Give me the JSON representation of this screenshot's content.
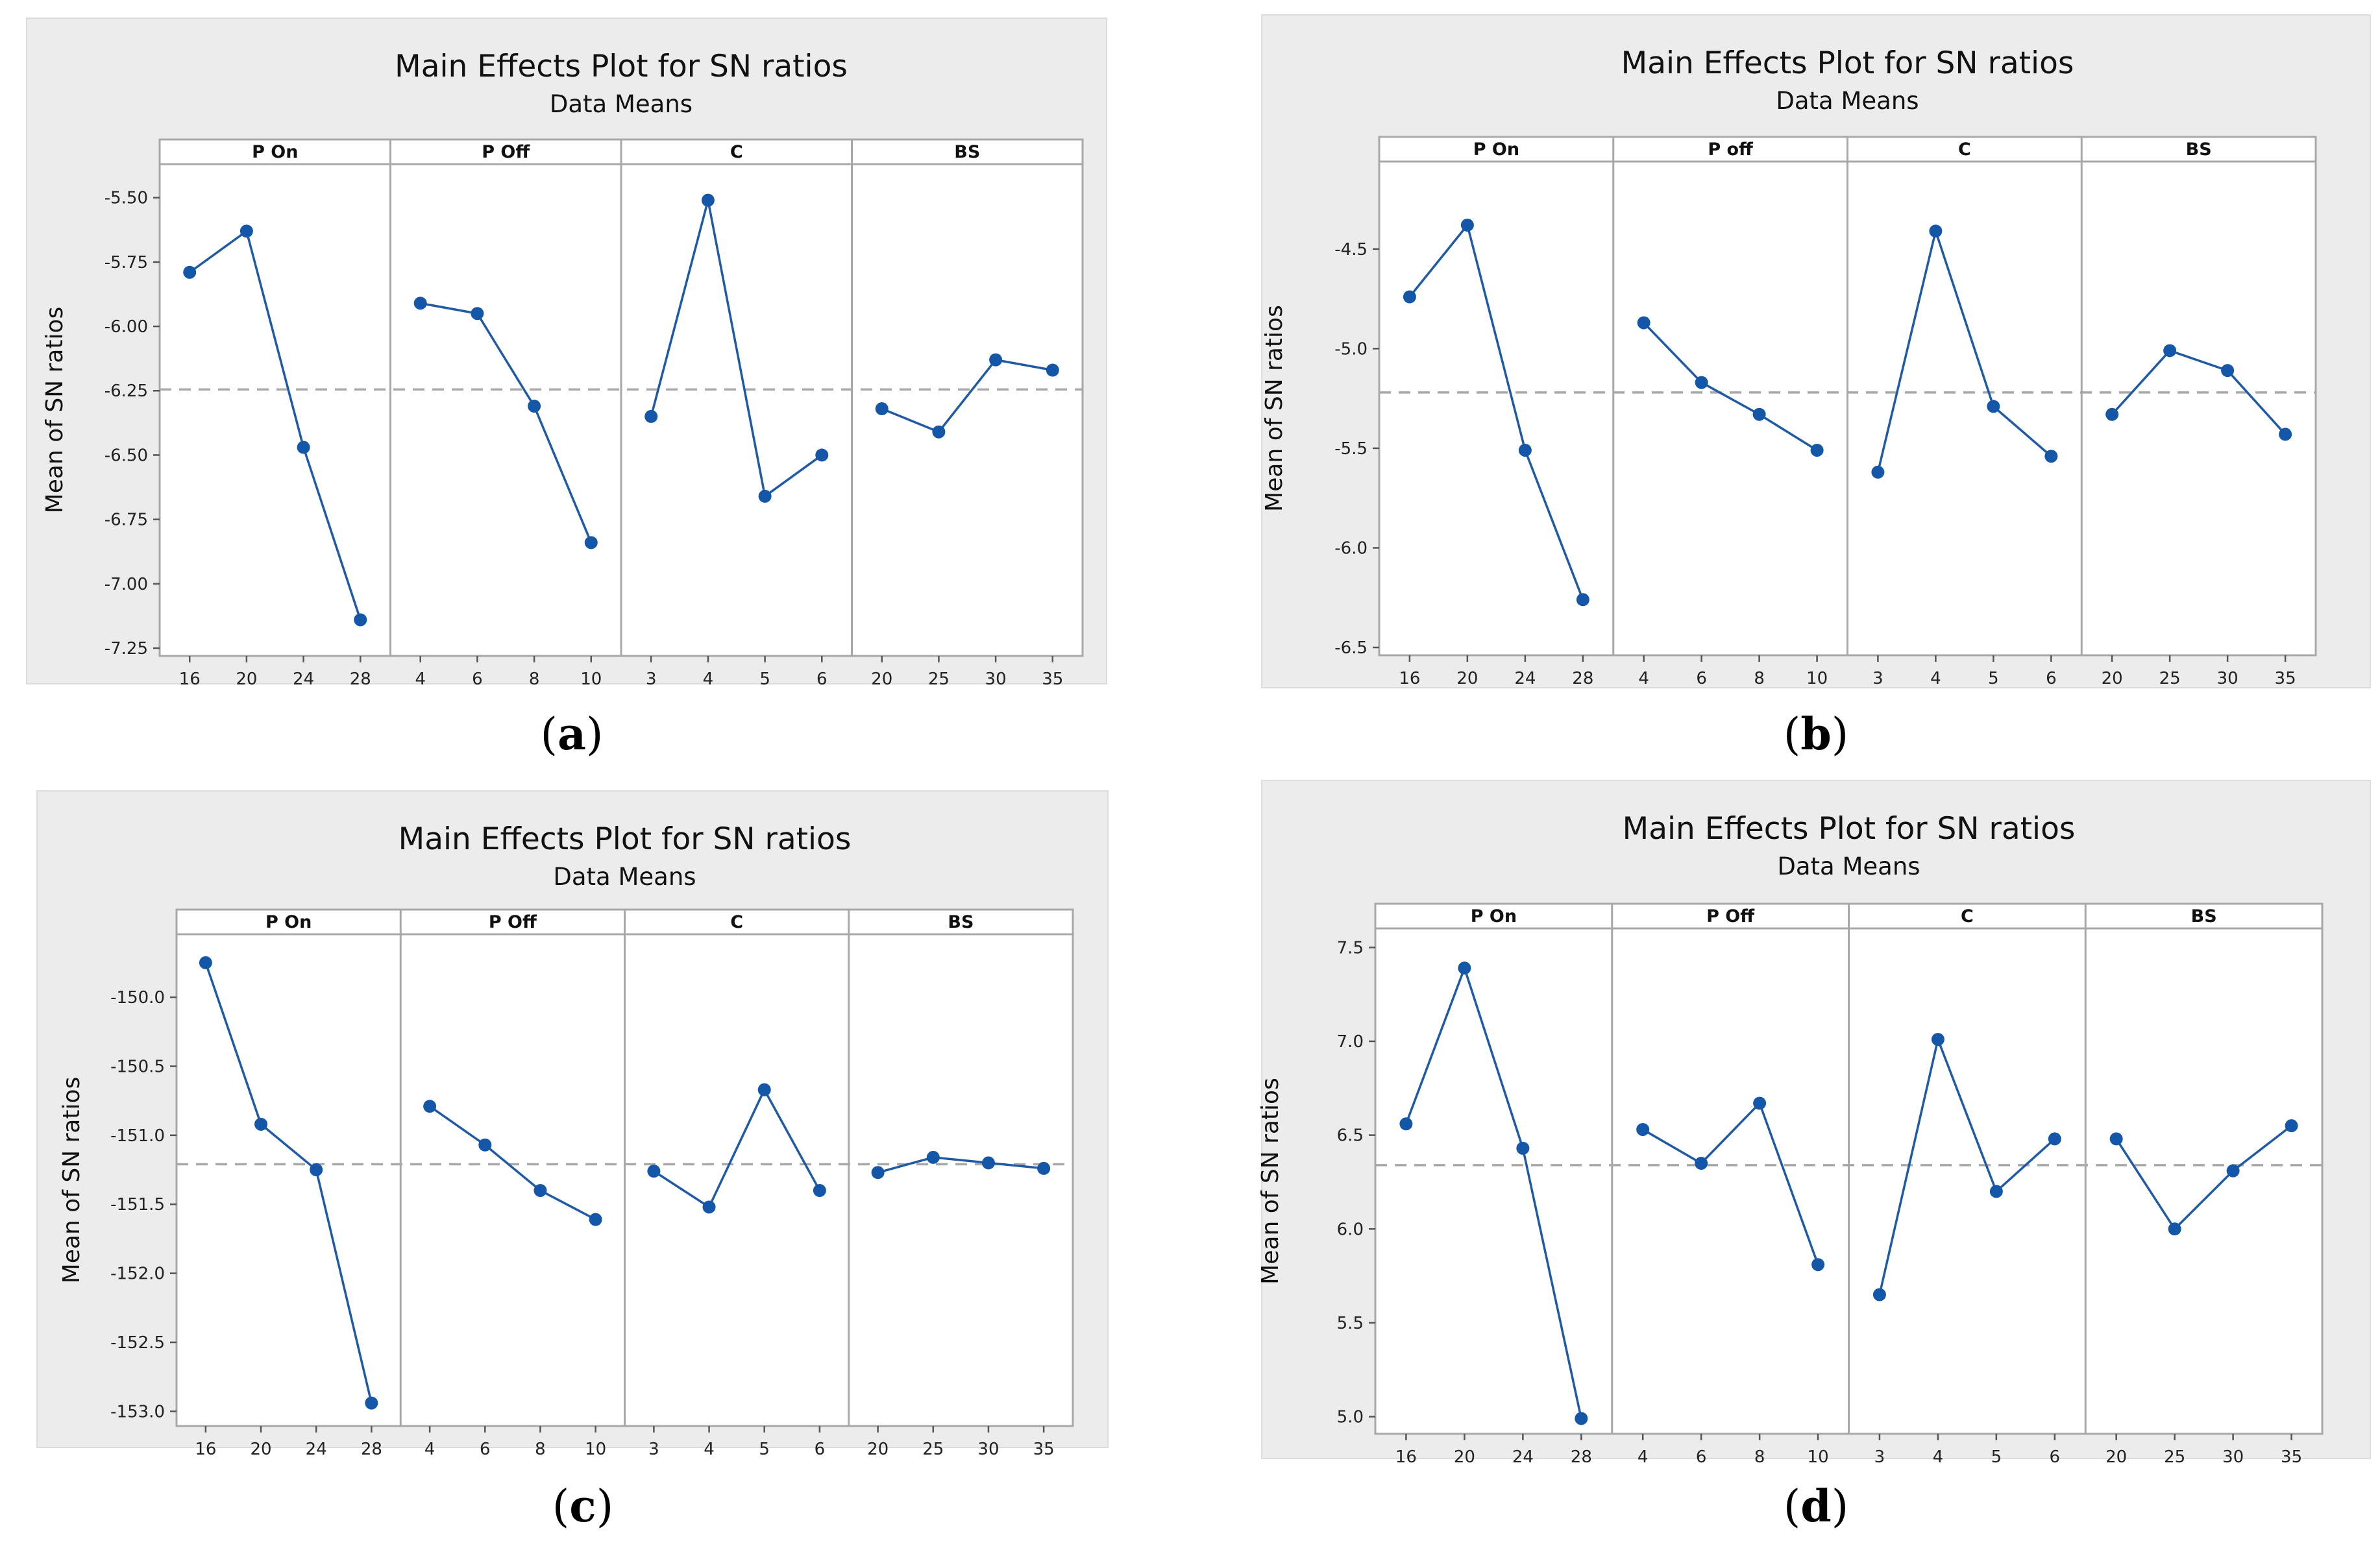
{
  "figure": {
    "panels": [
      {
        "caption_letter": "a",
        "title": "Main Effects Plot for SN ratios",
        "subtitle": "Data Means",
        "ylabel": "Mean of SN ratios",
        "chart_data": {
          "type": "line",
          "title": "Main Effects Plot for SN ratios",
          "subtitle": "Data Means",
          "ylabel": "Mean of SN ratios",
          "ylim": [
            -7.25,
            -5.4
          ],
          "yticks": [
            "-5.50",
            "-5.75",
            "-6.00",
            "-6.25",
            "-6.50",
            "-6.75",
            "-7.00",
            "-7.25"
          ],
          "reference_mean": -6.245,
          "factors": [
            {
              "name": "P On",
              "levels": [
                "16",
                "20",
                "24",
                "28"
              ],
              "values": [
                -5.79,
                -5.63,
                -6.47,
                -7.14
              ]
            },
            {
              "name": "P Off",
              "levels": [
                "4",
                "6",
                "8",
                "10"
              ],
              "values": [
                -5.91,
                -5.95,
                -6.31,
                -6.84
              ]
            },
            {
              "name": "C",
              "levels": [
                "3",
                "4",
                "5",
                "6"
              ],
              "values": [
                -6.35,
                -5.51,
                -6.66,
                -6.5
              ]
            },
            {
              "name": "BS",
              "levels": [
                "20",
                "25",
                "30",
                "35"
              ],
              "values": [
                -6.32,
                -6.41,
                -6.13,
                -6.17
              ]
            }
          ]
        }
      },
      {
        "caption_letter": "b",
        "title": "Main Effects Plot for SN ratios",
        "subtitle": "Data Means",
        "ylabel": "Mean of SN ratios",
        "chart_data": {
          "type": "line",
          "title": "Main Effects Plot for SN ratios",
          "subtitle": "Data Means",
          "ylabel": "Mean of SN ratios",
          "ylim": [
            -6.5,
            -4.1
          ],
          "yticks": [
            "-4.5",
            "-5.0",
            "-5.5",
            "-6.0",
            "-6.5"
          ],
          "reference_mean": -5.22,
          "factors": [
            {
              "name": "P On",
              "levels": [
                "16",
                "20",
                "24",
                "28"
              ],
              "values": [
                -4.74,
                -4.38,
                -5.51,
                -6.26
              ]
            },
            {
              "name": "P off",
              "levels": [
                "4",
                "6",
                "8",
                "10"
              ],
              "values": [
                -4.87,
                -5.17,
                -5.33,
                -5.51
              ]
            },
            {
              "name": "C",
              "levels": [
                "3",
                "4",
                "5",
                "6"
              ],
              "values": [
                -5.62,
                -4.41,
                -5.29,
                -5.54
              ]
            },
            {
              "name": "BS",
              "levels": [
                "20",
                "25",
                "30",
                "35"
              ],
              "values": [
                -5.33,
                -5.01,
                -5.11,
                -5.43
              ]
            }
          ]
        }
      },
      {
        "caption_letter": "c",
        "title": "Main Effects Plot for SN ratios",
        "subtitle": "Data Means",
        "ylabel": "Mean of SN ratios",
        "chart_data": {
          "type": "line",
          "title": "Main Effects Plot for SN ratios",
          "subtitle": "Data Means",
          "ylabel": "Mean of SN ratios",
          "ylim": [
            -153.05,
            -149.6
          ],
          "yticks": [
            "-150.0",
            "-150.5",
            "-151.0",
            "-151.5",
            "-152.0",
            "-152.5",
            "-153.0"
          ],
          "reference_mean": -151.21,
          "factors": [
            {
              "name": "P On",
              "levels": [
                "16",
                "20",
                "24",
                "28"
              ],
              "values": [
                -149.75,
                -150.92,
                -151.25,
                -152.94
              ]
            },
            {
              "name": "P Off",
              "levels": [
                "4",
                "6",
                "8",
                "10"
              ],
              "values": [
                -150.79,
                -151.07,
                -151.4,
                -151.61
              ]
            },
            {
              "name": "C",
              "levels": [
                "3",
                "4",
                "5",
                "6"
              ],
              "values": [
                -151.26,
                -151.52,
                -150.67,
                -151.4
              ]
            },
            {
              "name": "BS",
              "levels": [
                "20",
                "25",
                "30",
                "35"
              ],
              "values": [
                -151.27,
                -151.16,
                -151.2,
                -151.24
              ]
            }
          ]
        }
      },
      {
        "caption_letter": "d",
        "title": "Main Effects Plot for SN ratios",
        "subtitle": "Data Means",
        "ylabel": "Mean of SN ratios",
        "chart_data": {
          "type": "line",
          "title": "Main Effects Plot for SN ratios",
          "subtitle": "Data Means",
          "ylabel": "Mean of SN ratios",
          "ylim": [
            4.95,
            7.56
          ],
          "yticks": [
            "7.5",
            "7.0",
            "6.5",
            "6.0",
            "5.5",
            "5.0"
          ],
          "reference_mean": 6.34,
          "factors": [
            {
              "name": "P On",
              "levels": [
                "16",
                "20",
                "24",
                "28"
              ],
              "values": [
                6.56,
                7.39,
                6.43,
                4.99
              ]
            },
            {
              "name": "P Off",
              "levels": [
                "4",
                "6",
                "8",
                "10"
              ],
              "values": [
                6.53,
                6.35,
                6.67,
                5.81
              ]
            },
            {
              "name": "C",
              "levels": [
                "3",
                "4",
                "5",
                "6"
              ],
              "values": [
                5.65,
                7.01,
                6.2,
                6.48
              ]
            },
            {
              "name": "BS",
              "levels": [
                "20",
                "25",
                "30",
                "35"
              ],
              "values": [
                6.48,
                6.0,
                6.31,
                6.55
              ]
            }
          ]
        }
      }
    ]
  }
}
